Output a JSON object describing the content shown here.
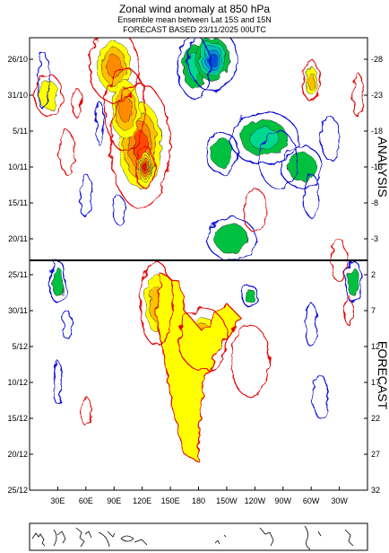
{
  "chart_data": {
    "type": "heatmap",
    "title": "Zonal wind anomaly at 850 hPa",
    "subtitle_1": "Ensemble mean between  Lat 15S and 15N",
    "subtitle_2": "FORECAST  BASED 23/11/2025 00UTC",
    "x_tick_labels": [
      "30E",
      "60E",
      "90E",
      "120E",
      "150E",
      "180",
      "150W",
      "120W",
      "90W",
      "60W",
      "30W"
    ],
    "x_tick_lon": [
      30,
      60,
      90,
      120,
      150,
      180,
      210,
      240,
      270,
      300,
      330
    ],
    "x_range_lon": [
      0,
      360
    ],
    "y_tick_labels_left": [
      "26/10",
      "31/10",
      "5/11",
      "10/11",
      "15/11",
      "20/11",
      "25/11",
      "30/11",
      "5/12",
      "10/12",
      "15/12",
      "20/12",
      "25/12"
    ],
    "y_tick_labels_right": [
      "-28",
      "-23",
      "-18",
      "-13",
      "-8",
      "-3",
      "2",
      "7",
      "12",
      "17",
      "22",
      "27",
      "32"
    ],
    "date_range": [
      "23/10/2025",
      "25/12/2025"
    ],
    "forecast_start": "23/11/2025",
    "section_labels": {
      "analysis": "ANALYSIS",
      "forecast": "FORECAST"
    },
    "fill_colors": {
      "positive": [
        "#ffff00",
        "#ffc000",
        "#ff8a00",
        "#ff4800",
        "#ff0000"
      ],
      "negative": [
        "#00c040",
        "#00d890",
        "#00c0c0",
        "#0090e0",
        "#0050d8"
      ],
      "contour_positive": "#e00000",
      "contour_negative": "#0000d0"
    },
    "positive_anomalies": [
      {
        "lon": 90,
        "date": "27/10/2025",
        "dlon": 18,
        "days": 3.5,
        "level": 3
      },
      {
        "lon": 118,
        "date": "07/11/2025",
        "dlon": 22,
        "days": 6,
        "level": 4
      },
      {
        "lon": 123,
        "date": "10/11/2025",
        "dlon": 7,
        "days": 2,
        "level": 5
      },
      {
        "lon": 102,
        "date": "02/11/2025",
        "dlon": 15,
        "days": 4,
        "level": 3
      },
      {
        "lon": 135,
        "date": "29/11/2025",
        "dlon": 12,
        "days": 4,
        "level": 2
      },
      {
        "lon": 185,
        "date": "04/12/2025",
        "dlon": 18,
        "days": 3,
        "level": 3
      },
      {
        "lon": 300,
        "date": "29/10/2025",
        "dlon": 6,
        "days": 2,
        "level": 2
      },
      {
        "lon": 20,
        "date": "31/10/2025",
        "dlon": 10,
        "days": 2,
        "level": 1
      }
    ],
    "forecast_positive_envelope": {
      "levels": [
        1,
        2
      ],
      "outline": [
        [
          140,
          "25/11"
        ],
        [
          160,
          "26/11"
        ],
        [
          165,
          "30/11"
        ],
        [
          185,
          "03/12"
        ],
        [
          210,
          "29/11"
        ],
        [
          225,
          "01/12"
        ],
        [
          200,
          "06/12"
        ],
        [
          185,
          "10/12"
        ],
        [
          180,
          "18/12"
        ],
        [
          180,
          "21/12"
        ],
        [
          165,
          "20/12"
        ],
        [
          155,
          "15/12"
        ],
        [
          145,
          "08/12"
        ],
        [
          135,
          "01/12"
        ]
      ]
    },
    "negative_anomalies": [
      {
        "lon": 175,
        "date": "27/10/2025",
        "dlon": 12,
        "days": 3,
        "level": 2
      },
      {
        "lon": 195,
        "date": "26/10/2025",
        "dlon": 18,
        "days": 3,
        "level": 5
      },
      {
        "lon": 250,
        "date": "06/11/2025",
        "dlon": 25,
        "days": 2.5,
        "level": 2
      },
      {
        "lon": 205,
        "date": "08/11/2025",
        "dlon": 12,
        "days": 2,
        "level": 1
      },
      {
        "lon": 290,
        "date": "10/11/2025",
        "dlon": 15,
        "days": 2,
        "level": 1
      },
      {
        "lon": 215,
        "date": "20/11/2025",
        "dlon": 18,
        "days": 2,
        "level": 1
      },
      {
        "lon": 30,
        "date": "26/11/2025",
        "dlon": 6,
        "days": 2,
        "level": 1
      },
      {
        "lon": 345,
        "date": "26/11/2025",
        "dlon": 6,
        "days": 2,
        "level": 1
      },
      {
        "lon": 235,
        "date": "28/11/2025",
        "dlon": 6,
        "days": 1,
        "level": 1
      }
    ]
  }
}
